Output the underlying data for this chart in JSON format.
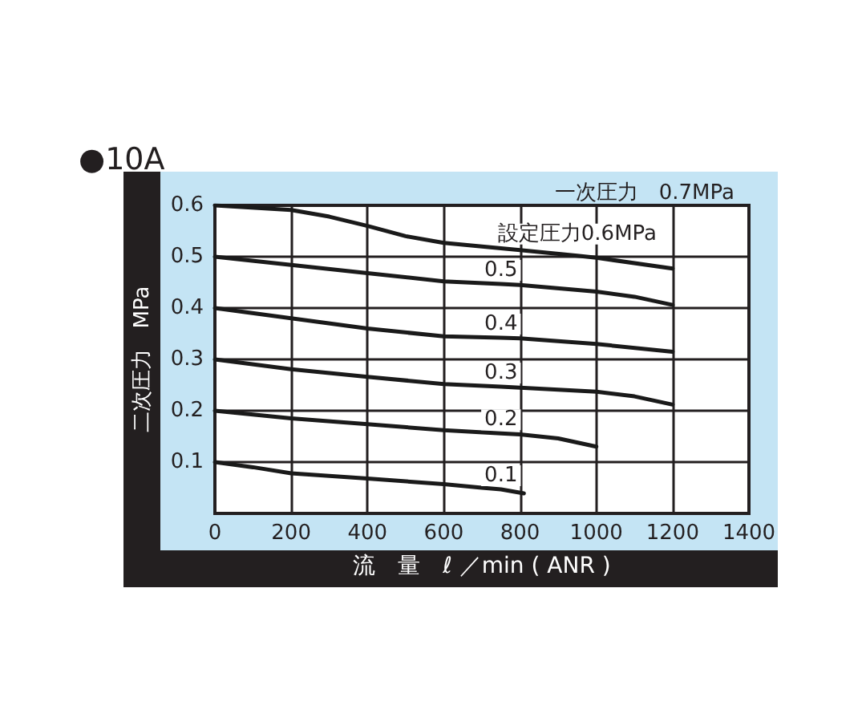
{
  "chart_data": {
    "type": "line",
    "title": "●10A",
    "xlabel": "流　量　ℓ ／min ( ANR )",
    "ylabel": "二次圧力　MPa",
    "annotations": [
      "一次圧力　0.7MPa"
    ],
    "xlim": [
      0,
      1400
    ],
    "ylim": [
      0,
      0.6
    ],
    "xticks": [
      0,
      200,
      400,
      600,
      800,
      1000,
      1200,
      1400
    ],
    "yticks": [
      0.1,
      0.2,
      0.3,
      0.4,
      0.5,
      0.6
    ],
    "grid": true,
    "line_style": "solid",
    "series": [
      {
        "name": "設定圧力0.6MPa",
        "color": "#1a1a1a",
        "x": [
          0,
          200,
          300,
          400,
          500,
          600,
          800,
          950,
          1000,
          1200
        ],
        "values": [
          0.6,
          0.591,
          0.578,
          0.56,
          0.54,
          0.527,
          0.513,
          0.502,
          0.498,
          0.477
        ]
      },
      {
        "name": "0.5",
        "color": "#1a1a1a",
        "x": [
          0,
          200,
          400,
          600,
          750,
          800,
          1000,
          1100,
          1200
        ],
        "values": [
          0.5,
          0.484,
          0.468,
          0.452,
          0.447,
          0.445,
          0.432,
          0.422,
          0.406
        ]
      },
      {
        "name": "0.4",
        "color": "#1a1a1a",
        "x": [
          0,
          200,
          400,
          600,
          750,
          800,
          1000,
          1200
        ],
        "values": [
          0.4,
          0.38,
          0.36,
          0.345,
          0.342,
          0.341,
          0.33,
          0.315
        ]
      },
      {
        "name": "0.3",
        "color": "#1a1a1a",
        "x": [
          0,
          200,
          400,
          600,
          750,
          800,
          1000,
          1100,
          1200
        ],
        "values": [
          0.3,
          0.281,
          0.266,
          0.252,
          0.247,
          0.245,
          0.237,
          0.228,
          0.212
        ]
      },
      {
        "name": "0.2",
        "color": "#1a1a1a",
        "x": [
          0,
          200,
          400,
          600,
          750,
          800,
          900,
          1000
        ],
        "values": [
          0.2,
          0.185,
          0.174,
          0.162,
          0.156,
          0.154,
          0.146,
          0.13
        ]
      },
      {
        "name": "0.1",
        "color": "#1a1a1a",
        "x": [
          0,
          100,
          200,
          400,
          600,
          700,
          750,
          810
        ],
        "values": [
          0.1,
          0.09,
          0.078,
          0.068,
          0.057,
          0.05,
          0.047,
          0.039
        ]
      }
    ]
  }
}
